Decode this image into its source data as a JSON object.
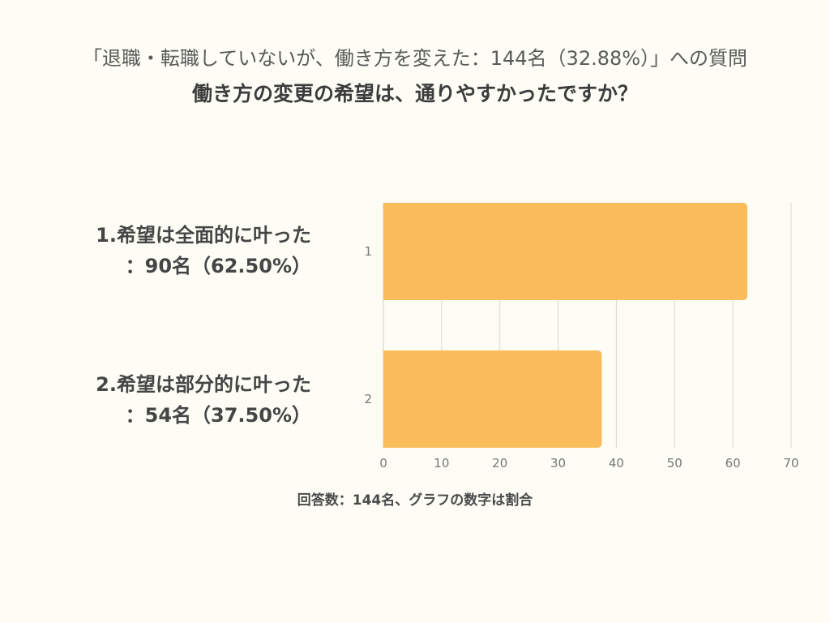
{
  "subtitle": "「退職・転職していないが、働き方を変えた：144名（32.88%）」への質問",
  "chart_data": {
    "type": "bar",
    "orientation": "horizontal",
    "title": "働き方の変更の希望は、通りやすかったですか？",
    "categories": [
      "1",
      "2"
    ],
    "category_labels": [
      [
        "1.希望は全面的に叶った",
        "：90名（62.50%）"
      ],
      [
        "2.希望は部分的に叶った",
        "：54名（37.50%）"
      ]
    ],
    "values": [
      62.5,
      37.5
    ],
    "xlim": [
      0,
      70
    ],
    "xticks": [
      0,
      10,
      20,
      30,
      40,
      50,
      60,
      70
    ],
    "grid": true,
    "legend": "none",
    "bar_color": "#fbbd5c",
    "grid_color": "#d9d9d4"
  },
  "note": "回答数：144名、グラフの数字は割合"
}
